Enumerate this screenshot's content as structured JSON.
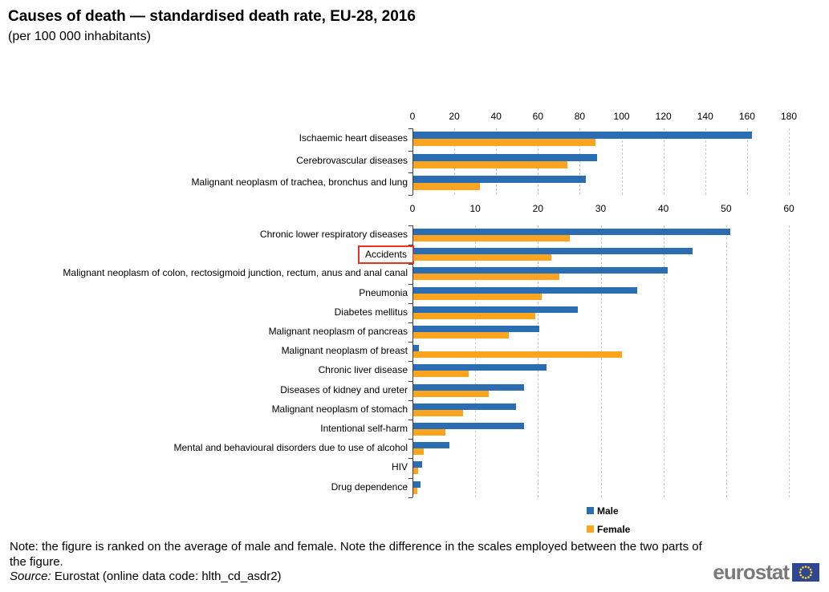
{
  "title": "Causes of death — standardised death rate, EU-28, 2016",
  "subtitle": "(per 100 000 inhabitants)",
  "legend": {
    "items": [
      {
        "label": "Male",
        "color_key": "male"
      },
      {
        "label": "Female",
        "color_key": "female"
      }
    ]
  },
  "note": "Note: the figure is ranked on the average of male and female. Note the difference in the scales employed between the two parts of the figure.",
  "source": {
    "label": "Source:",
    "text": " Eurostat (online data code: hlth_cd_asdr2)"
  },
  "logo": {
    "text": "eurostat"
  },
  "colors": {
    "male": "#2a6db2",
    "female": "#faa420",
    "grid": "#c9c9c9",
    "axis": "#404040",
    "highlight_box": "#e8331f",
    "logo_gray": "#7a7a7a",
    "eu_flag_blue": "#2e4693",
    "eu_star_yellow": "#ffd617"
  },
  "chart_data": [
    {
      "type": "bar",
      "orientation": "horizontal",
      "title": "",
      "xlabel": "",
      "ylabel": "",
      "axis": {
        "min": 0,
        "max": 180,
        "step": 20
      },
      "grid": true,
      "categories": [
        "Ischaemic heart diseases",
        "Cerebrovascular diseases",
        "Malignant neoplasm of trachea, bronchus and lung"
      ],
      "series": [
        {
          "name": "Male",
          "values": [
            162,
            88,
            82.5
          ]
        },
        {
          "name": "Female",
          "values": [
            87,
            73.5,
            32
          ]
        }
      ]
    },
    {
      "type": "bar",
      "orientation": "horizontal",
      "title": "",
      "xlabel": "",
      "ylabel": "",
      "axis": {
        "min": 0,
        "max": 60,
        "step": 10
      },
      "grid": true,
      "highlighted_category": "Accidents",
      "categories": [
        "Chronic lower respiratory diseases",
        "Accidents",
        "Malignant neoplasm of colon, rectosigmoid junction, rectum, anus and anal canal",
        "Pneumonia",
        "Diabetes mellitus",
        "Malignant neoplasm of pancreas",
        "Malignant neoplasm of breast",
        "Chronic liver disease",
        "Diseases of kidney and ureter",
        "Malignant neoplasm of stomach",
        "Intentional self-harm",
        "Mental and behavioural disorders due to use of alcohol",
        "HIV",
        "Drug dependence"
      ],
      "series": [
        {
          "name": "Male",
          "values": [
            50.5,
            44.5,
            40.5,
            35.7,
            26.2,
            20.1,
            0.9,
            21.2,
            17.6,
            16.4,
            17.6,
            5.8,
            1.4,
            1.1
          ]
        },
        {
          "name": "Female",
          "values": [
            25,
            22,
            23.3,
            20.5,
            19.5,
            15.2,
            33.2,
            8.8,
            12,
            7.9,
            5.1,
            1.6,
            0.8,
            0.6
          ]
        }
      ],
      "legend_position": "bottom-right"
    }
  ]
}
